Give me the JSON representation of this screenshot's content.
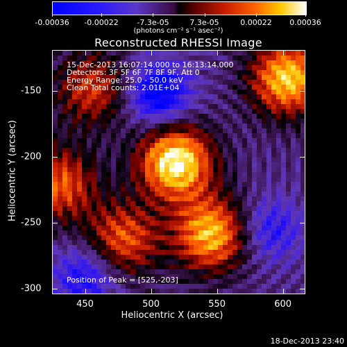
{
  "chart_data": {
    "type": "heatmap",
    "title": "Reconstructed RHESSI Image",
    "xlabel": "Heliocentric X (arcsec)",
    "ylabel": "Heliocentric Y (arcsec)",
    "xlim": [
      425,
      617
    ],
    "ylim": [
      -304,
      -119
    ],
    "x_ticks": [
      "450",
      "500",
      "550",
      "600"
    ],
    "y_ticks": [
      "-150",
      "-200",
      "-250",
      "-300"
    ],
    "x_tick_values": [
      450,
      500,
      550,
      600
    ],
    "y_tick_values": [
      -150,
      -200,
      -250,
      -300
    ],
    "colorbar": {
      "ticks": [
        "-0.00036",
        "-0.00022",
        "-7.3e-05",
        "7.3e-05",
        "0.00022",
        "0.00036"
      ],
      "tick_values": [
        -0.00036,
        -0.00022,
        -7.3e-05,
        7.3e-05,
        0.00022,
        0.00036
      ],
      "units": "(photons cm⁻² s⁻¹ asec⁻²)",
      "colormap": "blue-purple-black-red-orange-yellow-white"
    },
    "annotations": [
      "15-Dec-2013 16:07:14.000 to 16:13:14.000",
      "Detectors: 3F 5F 6F 7F 8F 9F, Att 0",
      "Energy Range: 25.0 - 50.0 keV",
      "Clean    Total counts: 2.01E+04"
    ],
    "peak_label": "Position of Peak = [525,-203]",
    "peak": [
      525,
      -203
    ],
    "sources": [
      {
        "x": 518,
        "y": -203,
        "value": 0.00036
      },
      {
        "x": 545,
        "y": -258,
        "value": 0.00028
      },
      {
        "x": 478,
        "y": -262,
        "value": 0.00018
      },
      {
        "x": 603,
        "y": -140,
        "value": 0.0003
      },
      {
        "x": 430,
        "y": -220,
        "value": 0.00018
      },
      {
        "x": 455,
        "y": -148,
        "value": 0.00014
      },
      {
        "x": 505,
        "y": -152,
        "value": -0.0003
      },
      {
        "x": 450,
        "y": -290,
        "value": -0.00022
      },
      {
        "x": 590,
        "y": -255,
        "value": -0.00018
      }
    ]
  },
  "footer": "18-Dec-2013 23:40"
}
